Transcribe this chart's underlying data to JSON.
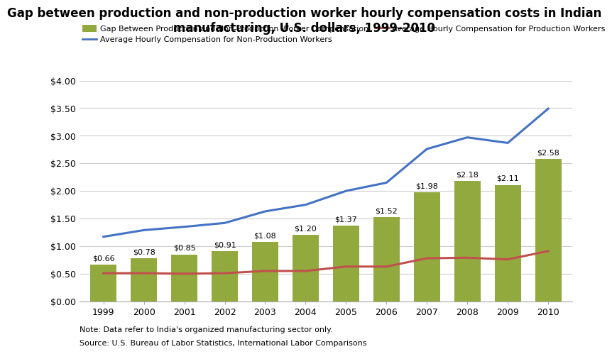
{
  "title": "Gap between production and non-production worker hourly compensation costs in Indian\nmanufacturing, U.S. dollars, 1999-2010",
  "years": [
    1999,
    2000,
    2001,
    2002,
    2003,
    2004,
    2005,
    2006,
    2007,
    2008,
    2009,
    2010
  ],
  "gap_values": [
    0.66,
    0.78,
    0.85,
    0.91,
    1.08,
    1.2,
    1.37,
    1.52,
    1.98,
    2.18,
    2.11,
    2.58
  ],
  "non_production_compensation": [
    1.17,
    1.29,
    1.35,
    1.42,
    1.63,
    1.75,
    2.0,
    2.15,
    2.76,
    2.97,
    2.87,
    3.49
  ],
  "production_compensation": [
    0.51,
    0.51,
    0.5,
    0.51,
    0.55,
    0.55,
    0.63,
    0.63,
    0.78,
    0.79,
    0.76,
    0.91
  ],
  "bar_color": "#92A93D",
  "non_prod_line_color": "#4472C4",
  "prod_line_color": "#C0504D",
  "ylim": [
    0.0,
    4.0
  ],
  "yticks": [
    0.0,
    0.5,
    1.0,
    1.5,
    2.0,
    2.5,
    3.0,
    3.5,
    4.0
  ],
  "note_line1": "Note: Data refer to India's organized manufacturing sector only.",
  "note_line2": "Source: U.S. Bureau of Labor Statistics, International Labor Comparisons",
  "legend_gap": "Gap Between Production and Non-Production Worker Compensation",
  "legend_nonprod": "Average Hourly Compensation for Non-Production Workers",
  "legend_prod": "Average Hourly Compensation for Production Workers",
  "background_color": "#FFFFFF",
  "title_fontsize": 12,
  "label_fontsize": 9
}
